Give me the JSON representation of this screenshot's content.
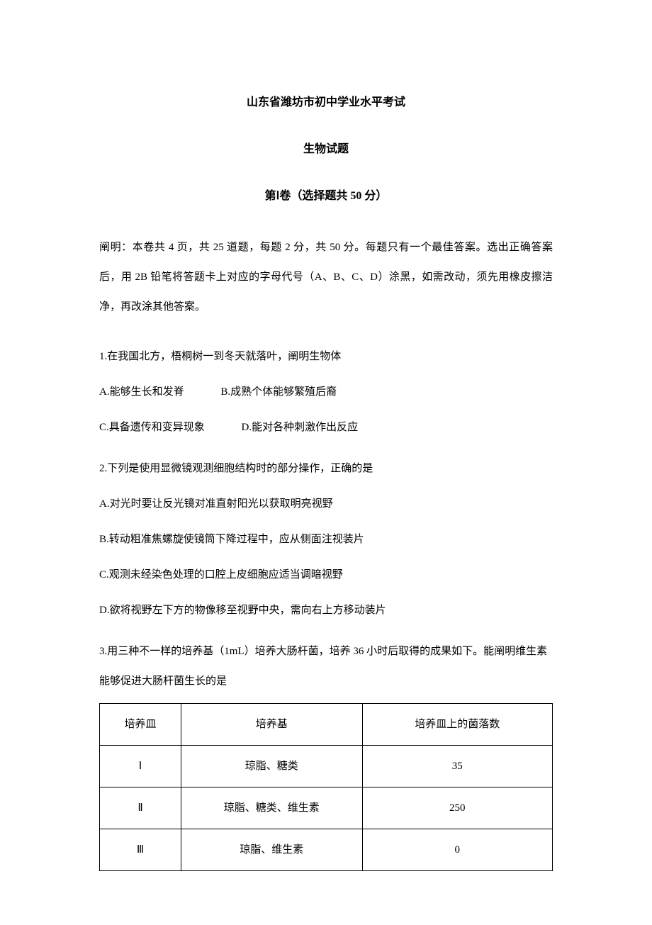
{
  "header": {
    "title_main": "山东省潍坊市初中学业水平考试",
    "title_sub": "生物试题",
    "section_title": "第Ⅰ卷（选择题共 50 分）"
  },
  "instructions": "阐明：本卷共 4 页，共 25 道题，每题 2 分，共 50 分。每题只有一个最佳答案。选出正确答案后，用 2B 铅笔将答题卡上对应的字母代号（A、B、C、D）涂黑，如需改动，须先用橡皮擦洁净，再改涂其他答案。",
  "questions": [
    {
      "text": "1.在我国北方，梧桐树一到冬天就落叶，阐明生物体",
      "options_layout": "two_per_row",
      "options": [
        "A.能够生长和发脊",
        "B.成熟个体能够繁殖后裔",
        "C.具备遗传和变异现象",
        "D.能对各种刺激作出反应"
      ]
    },
    {
      "text": "2.下列是使用显微镜观测细胞结构时的部分操作，正确的是",
      "options_layout": "one_per_row",
      "options": [
        "A.对光时要让反光镜对准直射阳光以获取明亮视野",
        "B.转动粗准焦螺旋使镜筒下降过程中，应从侧面注视装片",
        "C.观测未经染色处理的口腔上皮细胞应适当调暗视野",
        "D.欲将视野左下方的物像移至视野中央，需向右上方移动装片"
      ]
    },
    {
      "text": "3.用三种不一样的培养基（1mL）培养大肠杆菌，培养 36 小时后取得的成果如下。能阐明维生素能够促进大肠杆菌生长的是",
      "options_layout": "table",
      "table": {
        "columns": [
          "培养皿",
          "培养基",
          "培养皿上的菌落数"
        ],
        "rows": [
          [
            "Ⅰ",
            "琼脂、糖类",
            "35"
          ],
          [
            "Ⅱ",
            "琼脂、糖类、维生素",
            "250"
          ],
          [
            "Ⅲ",
            "琼脂、维生素",
            "0"
          ]
        ],
        "col_widths": [
          "18%",
          "40%",
          "42%"
        ]
      }
    }
  ],
  "styling": {
    "background_color": "#ffffff",
    "text_color": "#000000",
    "font_family": "SimSun",
    "base_font_size": 15,
    "title_font_size": 16,
    "line_height": 2.8,
    "table_border_color": "#000000"
  }
}
